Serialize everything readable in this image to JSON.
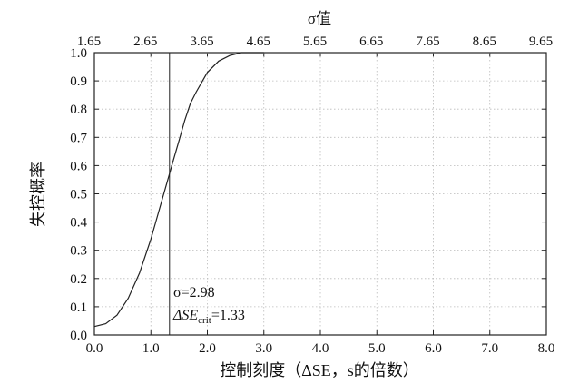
{
  "chart_data": {
    "type": "line",
    "top_axis_title": "σ值",
    "top_ticks": [
      "1.65",
      "2.65",
      "3.65",
      "4.65",
      "5.65",
      "6.65",
      "7.65",
      "8.65",
      "9.65"
    ],
    "xlabel": "控制刻度（ΔSE，s的倍数）",
    "ylabel": "失控概率",
    "xlim": [
      0,
      8
    ],
    "ylim": [
      0,
      1
    ],
    "x_ticks": [
      "0.0",
      "1.0",
      "2.0",
      "3.0",
      "4.0",
      "5.0",
      "6.0",
      "7.0",
      "8.0"
    ],
    "y_ticks": [
      "0.0",
      "0.1",
      "0.2",
      "0.3",
      "0.4",
      "0.5",
      "0.6",
      "0.7",
      "0.8",
      "0.9",
      "1.0"
    ],
    "grid": true,
    "series": [
      {
        "x": [
          0.0,
          0.2,
          0.4,
          0.6,
          0.8,
          1.0,
          1.1,
          1.2,
          1.3,
          1.4,
          1.5,
          1.6,
          1.7,
          1.8,
          2.0,
          2.2,
          2.4,
          2.6,
          2.8,
          3.0
        ],
        "y": [
          0.03,
          0.04,
          0.07,
          0.13,
          0.22,
          0.34,
          0.41,
          0.48,
          0.55,
          0.62,
          0.69,
          0.76,
          0.82,
          0.86,
          0.93,
          0.97,
          0.99,
          1.0,
          1.0,
          1.0
        ]
      }
    ],
    "vline": {
      "x": 1.33
    },
    "annotation": {
      "line1": "σ=2.98",
      "line2_main": "ΔSE",
      "line2_sub": "crit",
      "line2_tail": "=1.33"
    }
  }
}
